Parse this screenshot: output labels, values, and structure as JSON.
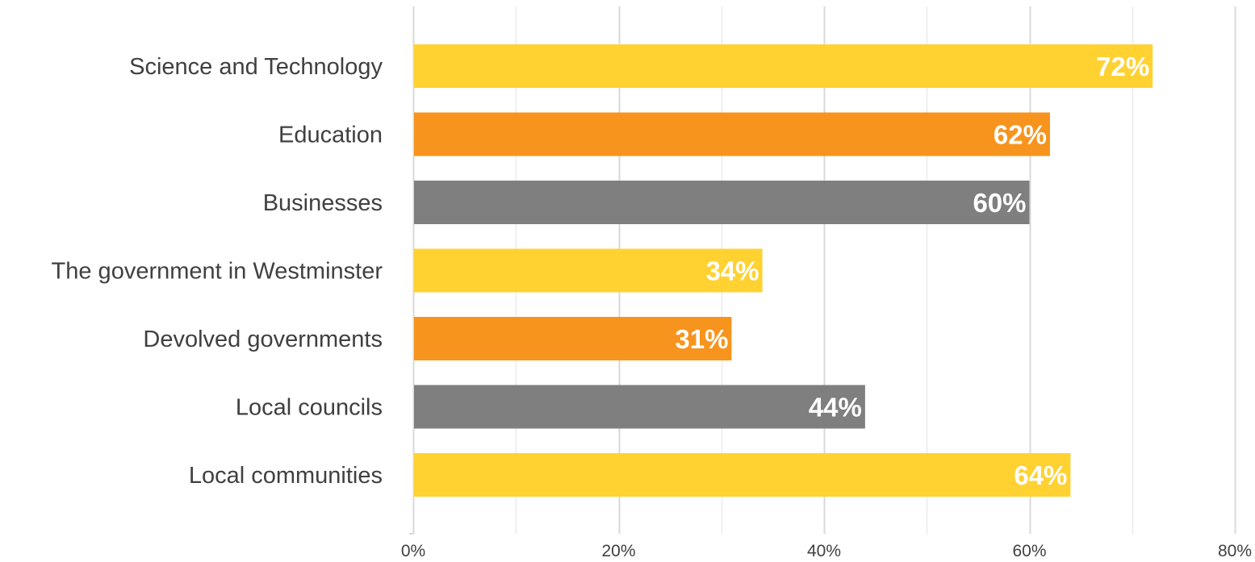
{
  "chart_data": {
    "type": "bar",
    "orientation": "horizontal",
    "title": "",
    "xlabel": "",
    "ylabel": "",
    "categories": [
      "Science and Technology",
      "Education",
      "Businesses",
      "The government in Westminster",
      "Devolved governments",
      "Local councils",
      "Local communities"
    ],
    "values": [
      72,
      62,
      60,
      34,
      31,
      44,
      64
    ],
    "data_labels": [
      "72%",
      "62%",
      "60%",
      "34%",
      "31%",
      "44%",
      "64%"
    ],
    "bar_colors": [
      "#FFD232",
      "#F7941D",
      "#7F7F7F",
      "#FFD232",
      "#F7941D",
      "#7F7F7F",
      "#FFD232"
    ],
    "xlim": [
      0,
      80
    ],
    "x_ticks": [
      0,
      20,
      40,
      60,
      80
    ],
    "x_tick_labels": [
      "0%",
      "20%",
      "40%",
      "60%",
      "80%"
    ],
    "grid": true,
    "legend": "none"
  }
}
